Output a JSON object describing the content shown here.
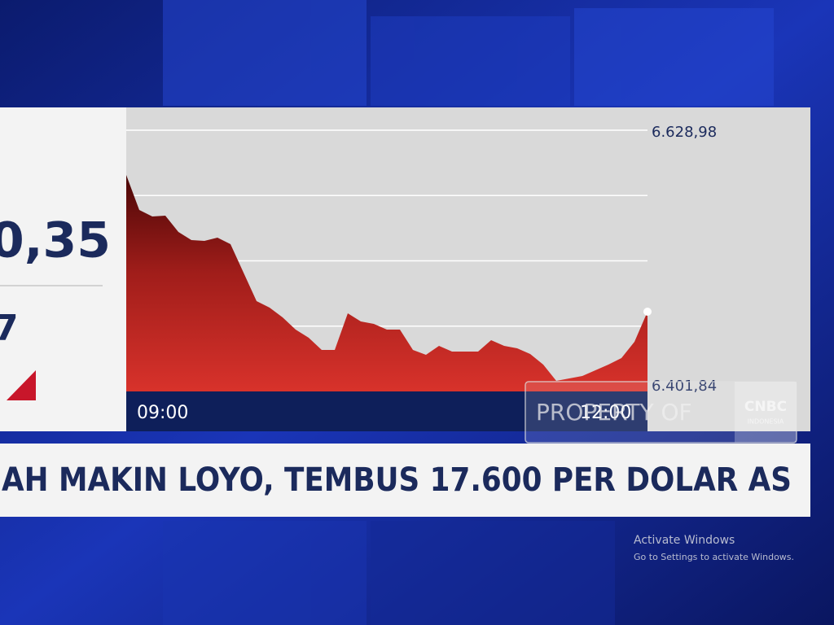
{
  "chart_data": {
    "type": "area",
    "categories": [
      null,
      "09:00",
      null,
      null,
      null,
      null,
      null,
      null,
      null,
      null,
      null,
      null,
      null,
      null,
      null,
      null,
      null,
      null,
      null,
      null,
      null,
      null,
      null,
      null,
      null,
      null,
      null,
      null,
      null,
      null,
      null,
      null,
      null,
      null,
      null,
      "12:00",
      null,
      null,
      null,
      null,
      null
    ],
    "values": [
      6590.06,
      6559.64,
      6553.97,
      6554.68,
      6540.53,
      6533.45,
      6532.75,
      6535.58,
      6529.91,
      6505.15,
      6480.38,
      6474.72,
      6466.23,
      6455.62,
      6448.54,
      6437.93,
      6437.93,
      6469.77,
      6462.7,
      6460.57,
      6455.62,
      6455.62,
      6437.93,
      6433.68,
      6441.47,
      6436.51,
      6436.51,
      6436.51,
      6446.42,
      6441.47,
      6439.34,
      6434.39,
      6425.19,
      6411.04,
      6413.16,
      6415.28,
      6420.24,
      6425.19,
      6430.85,
      6445.0,
      6471.19
    ],
    "color": "#d12d27",
    "ylim": [
      6401.84,
      6628.98
    ],
    "yticks": [
      {
        "value": 6401.84,
        "label": "6.401,84"
      },
      {
        "value": 6628.98,
        "label": "6.628,98"
      }
    ],
    "ygrid": [
      6458.63,
      6515.41,
      6572.2
    ],
    "grid": true
  },
  "left_panel": {
    "value_text": "0,35",
    "change_text": "7"
  },
  "headline": "AH MAKIN LOYO, TEMBUS 17.600 PER DOLAR AS",
  "watermark": {
    "text": "PROPERTY OF",
    "logo": "CNBC",
    "logo_sub": "INDONESIA"
  },
  "os_notice": {
    "title": "Activate Windows",
    "subtitle": "Go to Settings to activate Windows."
  }
}
